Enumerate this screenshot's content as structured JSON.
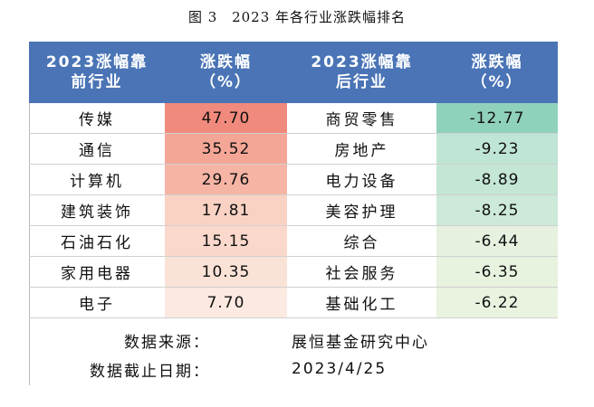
{
  "caption": {
    "fig": "图 3",
    "title": "2023 年各行业涨跌幅排名"
  },
  "headers": {
    "top_name": "2023涨幅靠\n前行业",
    "top_pct": "涨跌幅\n（%）",
    "bottom_name": "2023涨幅靠\n后行业",
    "bottom_pct": "涨跌幅\n（%）"
  },
  "top_rows": [
    {
      "name": "传媒",
      "value": "47.70",
      "color": "#f08a7c"
    },
    {
      "name": "通信",
      "value": "35.52",
      "color": "#f4a696"
    },
    {
      "name": "计算机",
      "value": "29.76",
      "color": "#f6b4a5"
    },
    {
      "name": "建筑装饰",
      "value": "17.81",
      "color": "#f9d2c4"
    },
    {
      "name": "石油石化",
      "value": "15.15",
      "color": "#fad8cb"
    },
    {
      "name": "家用电器",
      "value": "10.35",
      "color": "#fbe2d7"
    },
    {
      "name": "电子",
      "value": "7.70",
      "color": "#fce9e1"
    }
  ],
  "bottom_rows": [
    {
      "name": "商贸零售",
      "value": "-12.77",
      "color": "#8fd1bb"
    },
    {
      "name": "房地产",
      "value": "-9.23",
      "color": "#bfe5d4"
    },
    {
      "name": "电力设备",
      "value": "-8.89",
      "color": "#c3e6d5"
    },
    {
      "name": "美容护理",
      "value": "-8.25",
      "color": "#cde9d9"
    },
    {
      "name": "综合",
      "value": "-6.44",
      "color": "#e6f1df"
    },
    {
      "name": "社会服务",
      "value": "-6.35",
      "color": "#e7f2df"
    },
    {
      "name": "基础化工",
      "value": "-6.22",
      "color": "#e9f3e0"
    }
  ],
  "footer": {
    "source_label": "数据来源：",
    "source_value": "展恒基金研究中心",
    "date_label": "数据截止日期：",
    "date_value": "2023/4/25"
  }
}
